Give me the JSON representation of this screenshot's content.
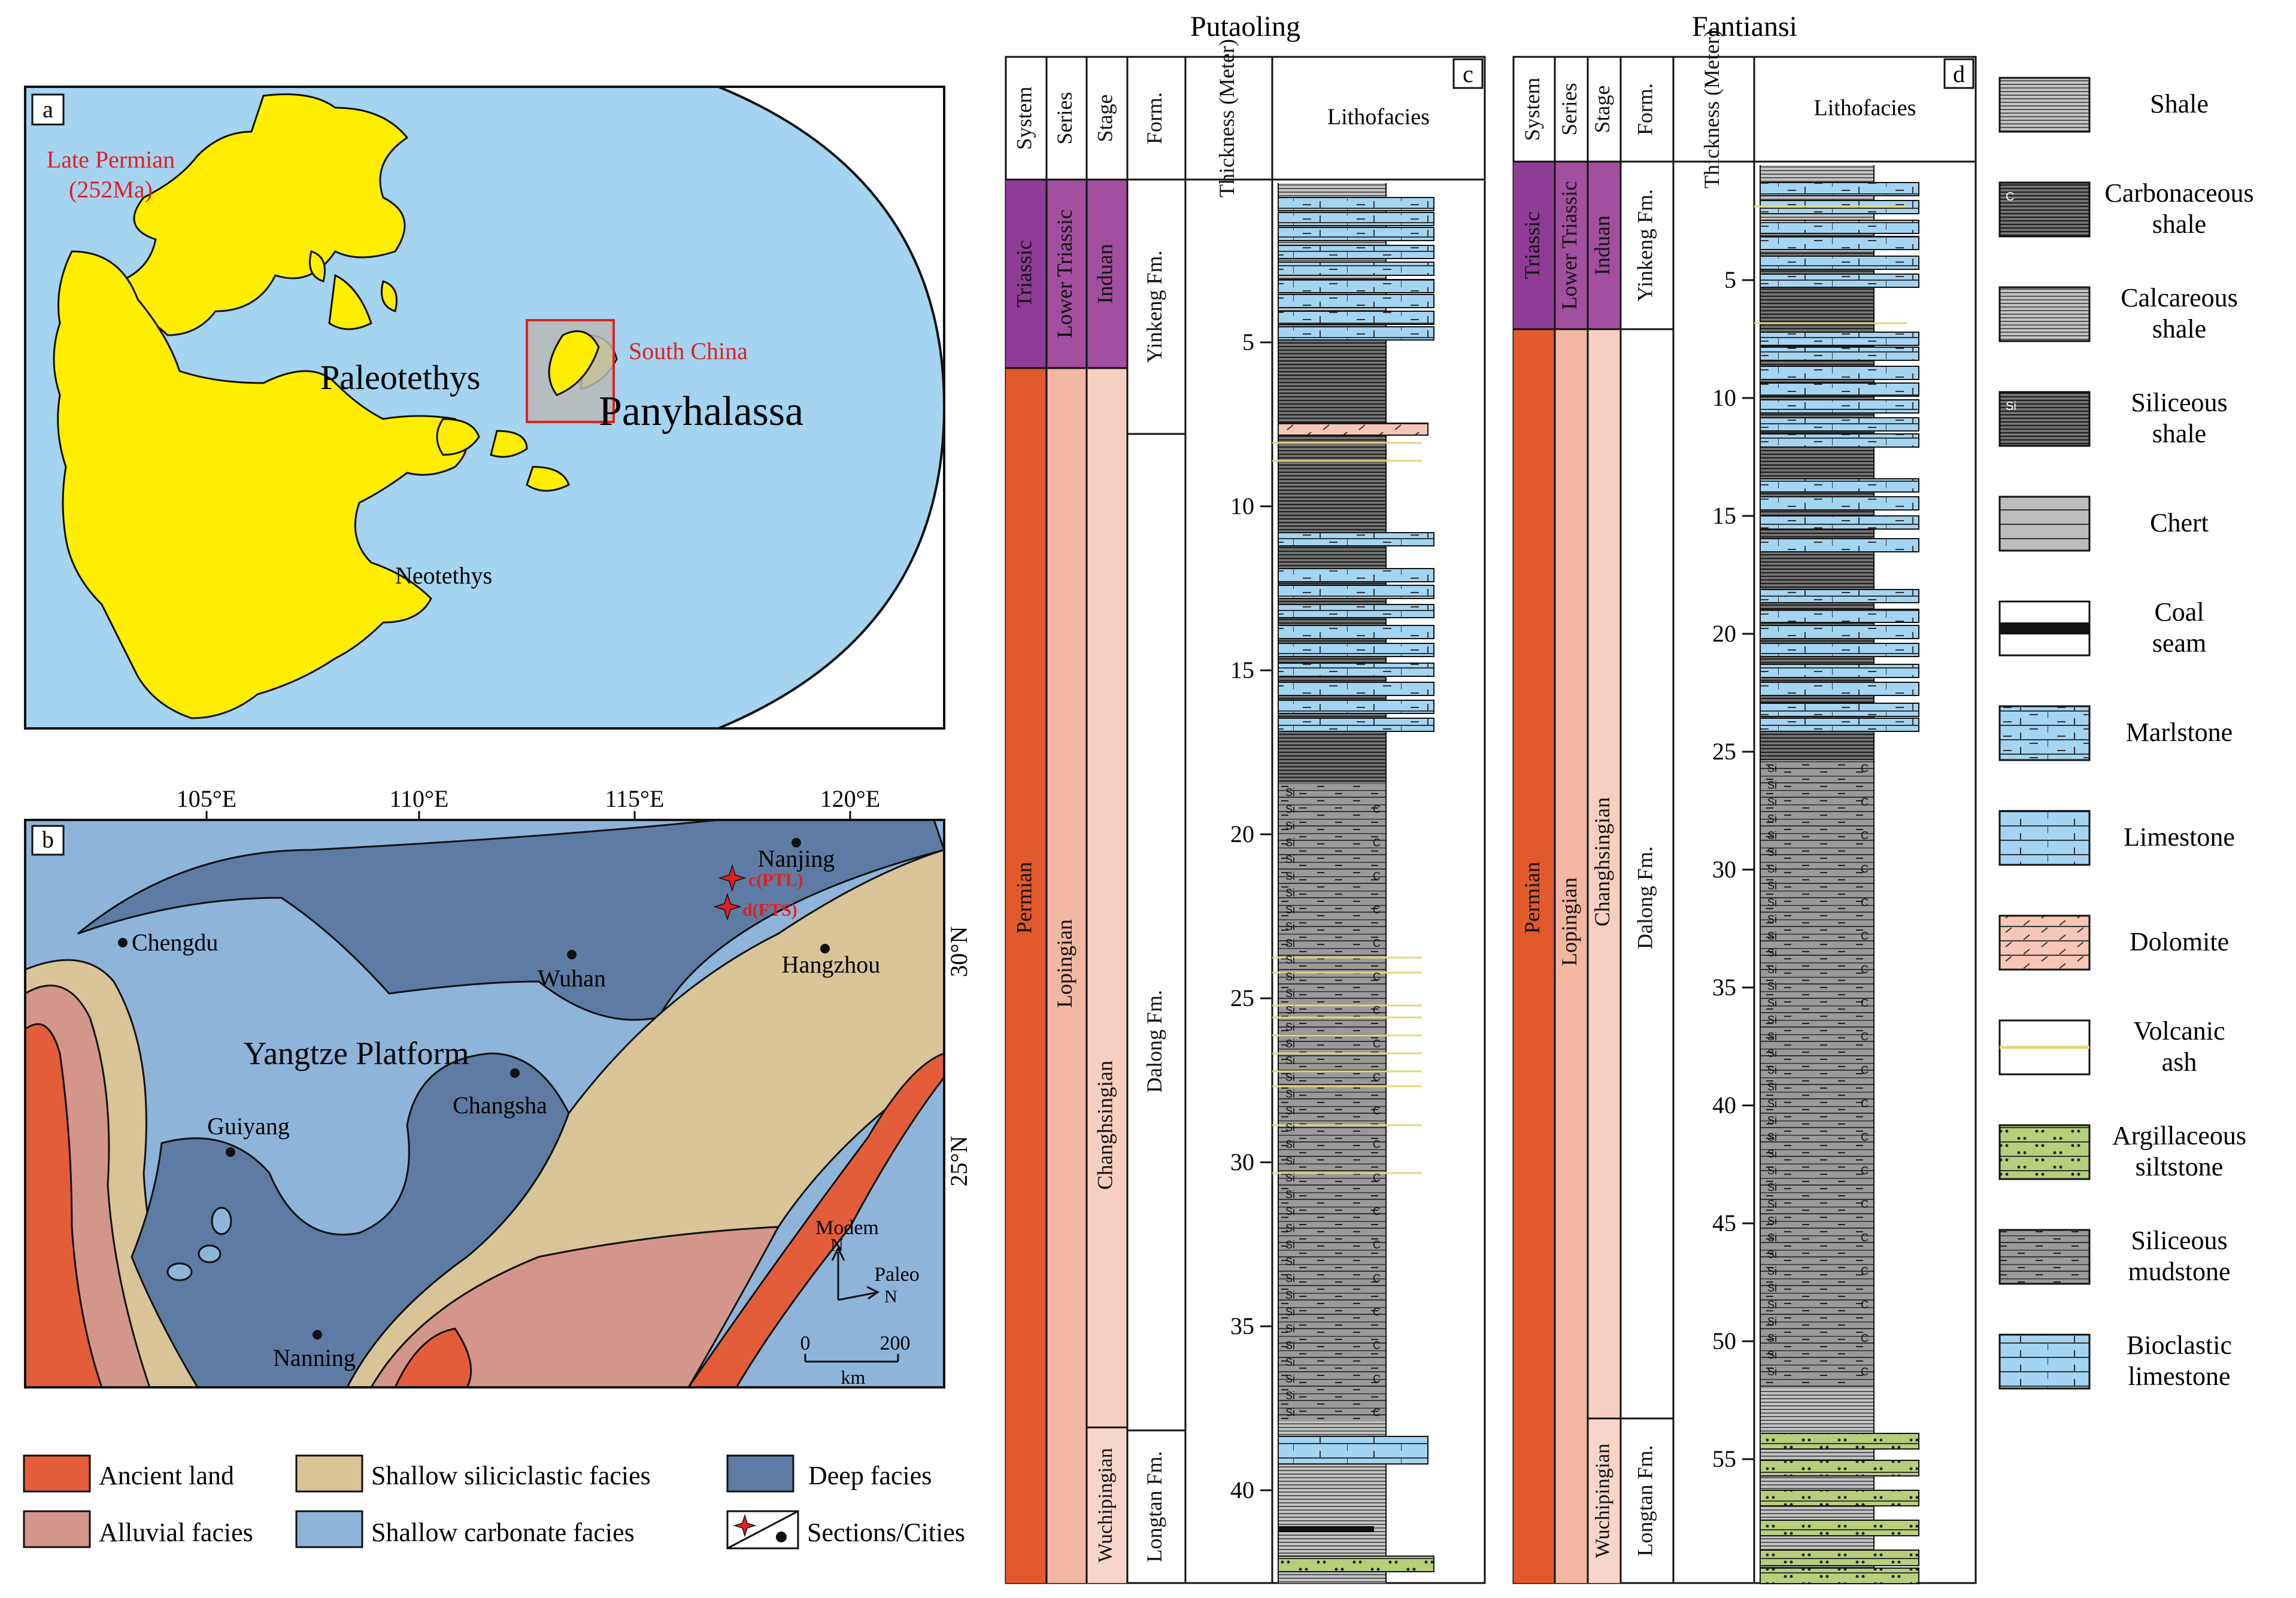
{
  "panel_a": {
    "letter": "a",
    "age_line1": "Late Permian",
    "age_line2": "(252Ma)",
    "paleotethys": "Paleotethys",
    "panthalassa": "Panyhalassa",
    "south_china": "South China",
    "neotethys": "Neotethys"
  },
  "panel_b": {
    "letter": "b",
    "lon_labels": [
      "105°E",
      "110°E",
      "115°E",
      "120°E"
    ],
    "lat_labels": [
      "30°N",
      "25°N"
    ],
    "cities": [
      "Chengdu",
      "Wuhan",
      "Nanjing",
      "Hangzhou",
      "Changsha",
      "Guiyang",
      "Nanning"
    ],
    "platform": "Yangtze Platform",
    "section_c": "c(PTL)",
    "section_d": "d(FTS)",
    "north_modern": "Modem",
    "north_paleo": "Paleo",
    "north_n1": "N",
    "north_n2": "N",
    "scale_0": "0",
    "scale_200": "200",
    "scale_unit": "km"
  },
  "map_legend": [
    {
      "label": "Ancient land",
      "color": "#e35d3a"
    },
    {
      "label": "Shallow siliciclastic facies",
      "color": "#d8c497"
    },
    {
      "label": "Deep facies",
      "color": "#5e7ba3"
    },
    {
      "label": "Alluvial facies",
      "color": "#d4968a"
    },
    {
      "label": "Shallow carbonate facies",
      "color": "#8fb4da"
    },
    {
      "label": "Sections/Cities",
      "color": "#111111"
    }
  ],
  "colors": {
    "ocean": "#a4d4f0",
    "land_yellow": "#ffee00",
    "triassic": "#8f3c96",
    "lower_triassic": "#a14f9e",
    "permian": "#e05a2b",
    "lopingian": "#f2b7a0",
    "changhsingian": "#f7cfc0",
    "wuchiapingian": "#f7d5c8",
    "marl": "#a3d4f2",
    "shale_grey": "#c6c6c6",
    "dark_shale": "#555555",
    "dolomite": "#f7c6b6",
    "siltstone": "#b6cf7a",
    "ash": "#e0d878"
  },
  "col_c": {
    "title": "Putaoling",
    "letter": "c",
    "headers": [
      "System",
      "Series",
      "Stage",
      "Form.",
      "Thickness (Meter)",
      "Lithofacies"
    ],
    "system": [
      "Triassic",
      "Permian"
    ],
    "series": [
      "Lower Triassic",
      "Lopingian"
    ],
    "stage": [
      "Induan",
      "Changhsingian",
      "Wuchipingian"
    ],
    "formation": [
      "Yinkeng Fm.",
      "Dalong Fm.",
      "Longtan Fm."
    ],
    "ticks": [
      "5",
      "10",
      "15",
      "20",
      "25",
      "30",
      "35",
      "40"
    ]
  },
  "col_d": {
    "title": "Fantiansi",
    "letter": "d",
    "headers": [
      "System",
      "Series",
      "Stage",
      "Form.",
      "Thickness (Meter)",
      "Lithofacies"
    ],
    "system": [
      "Triassic",
      "Permian"
    ],
    "series": [
      "Lower Triassic",
      "Lopingian"
    ],
    "stage": [
      "Induan",
      "Changhsingian",
      "Wuchipingian"
    ],
    "formation": [
      "Yinkeng Fm.",
      "Dalong Fm.",
      "Longtan Fm."
    ],
    "ticks": [
      "5",
      "10",
      "15",
      "20",
      "25",
      "30",
      "35",
      "40",
      "45",
      "50",
      "55"
    ]
  },
  "litho_legend": [
    {
      "label": "Shale",
      "icon": "shale"
    },
    {
      "label": "Carbonaceous shale",
      "icon": "carbonaceous-shale"
    },
    {
      "label": "Calcareous shale",
      "icon": "calcareous-shale"
    },
    {
      "label": "Siliceous shale",
      "icon": "siliceous-shale"
    },
    {
      "label": "Chert",
      "icon": "chert"
    },
    {
      "label": "Coal seam",
      "icon": "coal-seam"
    },
    {
      "label": "Marlstone",
      "icon": "marlstone"
    },
    {
      "label": "Limestone",
      "icon": "limestone"
    },
    {
      "label": "Dolomite",
      "icon": "dolomite"
    },
    {
      "label": "Volcanic ash",
      "icon": "volcanic-ash"
    },
    {
      "label": "Argillaceous siltstone",
      "icon": "argillaceous-siltstone"
    },
    {
      "label": "Siliceous mudstone",
      "icon": "siliceous-mudstone"
    },
    {
      "label": "Bioclastic limestone",
      "icon": "bioclastic-limestone"
    }
  ]
}
